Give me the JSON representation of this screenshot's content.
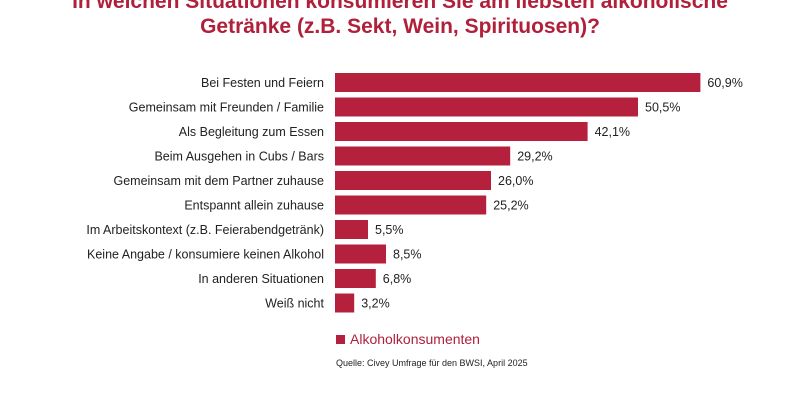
{
  "chart_data": {
    "type": "bar",
    "orientation": "horizontal",
    "title_line1": "In welchen Situationen konsumieren Sie am liebsten alkoholische",
    "title_line2": "Getränke  (z.B. Sekt, Wein, Spirituosen)?",
    "categories": [
      "Bei Festen und Feiern",
      "Gemeinsam mit Freunden / Familie",
      "Als Begleitung zum Essen",
      "Beim Ausgehen in Cubs / Bars",
      "Gemeinsam mit dem Partner zuhause",
      "Entspannt allein zuhause",
      "Im Arbeitskontext (z.B. Feierabendgetränk)",
      "Keine Angabe / konsumiere keinen Alkohol",
      "In anderen Situationen",
      "Weiß nicht"
    ],
    "series": [
      {
        "name": "Alkoholkonsumenten",
        "values": [
          60.9,
          50.5,
          42.1,
          29.2,
          26.0,
          25.2,
          5.5,
          8.5,
          6.8,
          3.2
        ],
        "color": "#b5213c"
      }
    ],
    "data_labels": [
      "60,9%",
      "50,5%",
      "42,1%",
      "29,2%",
      "26,0%",
      "25,2%",
      "5,5%",
      "8,5%",
      "6,8%",
      "3,2%"
    ],
    "xlim": [
      0,
      65
    ],
    "grid": false,
    "legend_placement": "bottom",
    "source": "Quelle: Civey Umfrage für den BWSI, April 2025",
    "title_color": "#b0203a"
  }
}
